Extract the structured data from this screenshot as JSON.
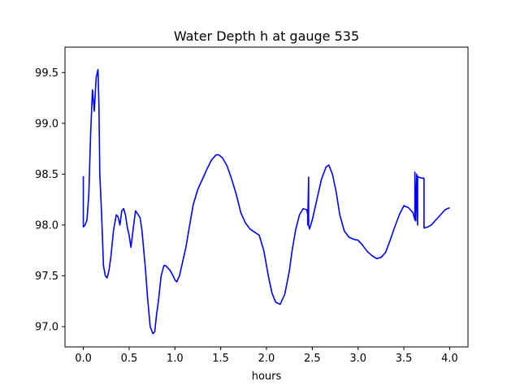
{
  "chart_data": {
    "type": "line",
    "title": "Water Depth h at gauge 535",
    "xlabel": "hours",
    "ylabel": "",
    "xlim": [
      -0.2,
      4.2
    ],
    "ylim": [
      96.8,
      99.75
    ],
    "x_ticks": [
      0.0,
      0.5,
      1.0,
      1.5,
      2.0,
      2.5,
      3.0,
      3.5,
      4.0
    ],
    "x_tick_labels": [
      "0.0",
      "0.5",
      "1.0",
      "1.5",
      "2.0",
      "2.5",
      "3.0",
      "3.5",
      "4.0"
    ],
    "y_ticks": [
      97.0,
      97.5,
      98.0,
      98.5,
      99.0,
      99.5
    ],
    "y_tick_labels": [
      "97.0",
      "97.5",
      "98.0",
      "98.5",
      "99.0",
      "99.5"
    ],
    "grid": false,
    "legend": "none",
    "series": [
      {
        "color": "#0000ff",
        "x": [
          0.0,
          0.0,
          0.02,
          0.04,
          0.06,
          0.08,
          0.1,
          0.12,
          0.14,
          0.16,
          0.17,
          0.18,
          0.2,
          0.22,
          0.24,
          0.26,
          0.28,
          0.3,
          0.33,
          0.36,
          0.38,
          0.4,
          0.42,
          0.44,
          0.46,
          0.48,
          0.5,
          0.52,
          0.55,
          0.57,
          0.6,
          0.62,
          0.64,
          0.66,
          0.68,
          0.7,
          0.73,
          0.76,
          0.78,
          0.8,
          0.82,
          0.85,
          0.88,
          0.9,
          0.92,
          0.95,
          0.98,
          1.0,
          1.02,
          1.05,
          1.08,
          1.1,
          1.12,
          1.15,
          1.2,
          1.25,
          1.3,
          1.35,
          1.4,
          1.45,
          1.48,
          1.52,
          1.57,
          1.62,
          1.67,
          1.72,
          1.77,
          1.82,
          1.87,
          1.92,
          1.97,
          2.02,
          2.06,
          2.1,
          2.15,
          2.2,
          2.25,
          2.28,
          2.32,
          2.36,
          2.4,
          2.44,
          2.45,
          2.45,
          2.46,
          2.46,
          2.47,
          2.5,
          2.55,
          2.6,
          2.65,
          2.68,
          2.72,
          2.76,
          2.8,
          2.85,
          2.9,
          2.95,
          3.0,
          3.05,
          3.1,
          3.15,
          3.2,
          3.25,
          3.3,
          3.35,
          3.4,
          3.45,
          3.5,
          3.55,
          3.6,
          3.62,
          3.62,
          3.63,
          3.64,
          3.65,
          3.65,
          3.66,
          3.7,
          3.72,
          3.72,
          3.76,
          3.8,
          3.85,
          3.9,
          3.95,
          4.0
        ],
        "y": [
          98.48,
          97.98,
          98.0,
          98.05,
          98.3,
          98.9,
          99.33,
          99.12,
          99.45,
          99.53,
          99.2,
          98.5,
          98.1,
          97.6,
          97.5,
          97.48,
          97.55,
          97.68,
          97.95,
          98.1,
          98.08,
          98.0,
          98.14,
          98.16,
          98.1,
          97.98,
          97.9,
          97.78,
          98.0,
          98.14,
          98.1,
          98.07,
          97.95,
          97.75,
          97.55,
          97.3,
          97.0,
          96.93,
          96.95,
          97.12,
          97.25,
          97.5,
          97.6,
          97.6,
          97.58,
          97.55,
          97.5,
          97.46,
          97.44,
          97.5,
          97.62,
          97.7,
          97.78,
          97.94,
          98.2,
          98.35,
          98.45,
          98.55,
          98.64,
          98.69,
          98.69,
          98.66,
          98.58,
          98.45,
          98.3,
          98.12,
          98.02,
          97.96,
          97.93,
          97.9,
          97.75,
          97.5,
          97.33,
          97.24,
          97.22,
          97.32,
          97.55,
          97.75,
          97.96,
          98.1,
          98.16,
          98.15,
          98.1,
          98.0,
          98.47,
          98.0,
          97.96,
          98.05,
          98.25,
          98.45,
          98.57,
          98.59,
          98.5,
          98.33,
          98.1,
          97.94,
          97.88,
          97.86,
          97.85,
          97.8,
          97.74,
          97.7,
          97.67,
          97.68,
          97.73,
          97.85,
          97.98,
          98.1,
          98.19,
          98.17,
          98.12,
          98.05,
          98.52,
          98.04,
          98.5,
          98.0,
          98.48,
          98.47,
          98.46,
          98.46,
          97.97,
          97.98,
          98.0,
          98.05,
          98.1,
          98.15,
          98.17
        ]
      }
    ]
  }
}
